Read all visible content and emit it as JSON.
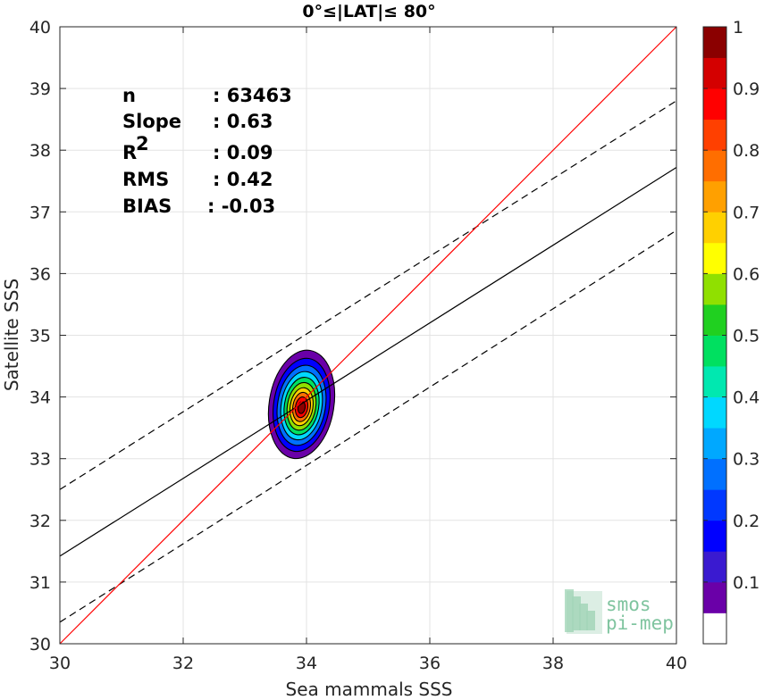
{
  "chart_data": {
    "type": "contour",
    "title": "0°≤|LAT|≤ 80°",
    "xlabel": "Sea mammals SSS",
    "ylabel": "Satellite SSS",
    "xlim": [
      30,
      40
    ],
    "ylim": [
      30,
      40
    ],
    "xticks": [
      "30",
      "32",
      "34",
      "36",
      "38",
      "40"
    ],
    "yticks": [
      "30",
      "31",
      "32",
      "33",
      "34",
      "35",
      "36",
      "37",
      "38",
      "39",
      "40"
    ],
    "grid": true,
    "stats": [
      {
        "label": "n",
        "value": ": 63463"
      },
      {
        "label": "Slope",
        "value": ": 0.63"
      },
      {
        "label": "R",
        "sup": "2",
        "value": ": 0.09"
      },
      {
        "label": "RMS",
        "value": ": 0.42"
      },
      {
        "label": "BIAS",
        "value": ": -0.03"
      }
    ],
    "lines": {
      "identity": {
        "color": "#ff0000",
        "x": [
          30,
          40
        ],
        "y": [
          30,
          40
        ]
      },
      "fit": {
        "color": "#000000",
        "x": [
          30,
          40
        ],
        "y": [
          31.42,
          37.72
        ]
      },
      "fit_upper": {
        "color": "#000000",
        "style": "dashed",
        "x": [
          30,
          40
        ],
        "y": [
          32.5,
          38.8
        ]
      },
      "fit_lower": {
        "color": "#000000",
        "style": "dashed",
        "x": [
          30,
          40
        ],
        "y": [
          30.35,
          36.7
        ]
      }
    },
    "density": {
      "center": [
        33.92,
        33.88
      ],
      "outer_x_range": [
        33.43,
        34.48
      ],
      "outer_y_range": [
        33.05,
        34.82
      ],
      "levels": [
        0.05,
        0.15,
        0.25,
        0.35,
        0.45,
        0.55,
        0.65,
        0.75,
        0.85,
        0.95
      ]
    },
    "colorbar": {
      "range": [
        0,
        1
      ],
      "ticks": [
        "0.1",
        "0.2",
        "0.3",
        "0.4",
        "0.5",
        "0.6",
        "0.7",
        "0.8",
        "0.9",
        "1"
      ],
      "colors": [
        "#ffffff",
        "#6a00a8",
        "#3a1ad0",
        "#0000ff",
        "#0038ff",
        "#0070ff",
        "#00a8ff",
        "#00d8ff",
        "#00e8b0",
        "#00e060",
        "#20d020",
        "#90e000",
        "#ffff00",
        "#ffd000",
        "#ffa000",
        "#ff6e00",
        "#ff4000",
        "#ff0000",
        "#d40000",
        "#8b0000"
      ]
    }
  },
  "logo": {
    "line1": "smos",
    "line2": "pi-mep"
  }
}
